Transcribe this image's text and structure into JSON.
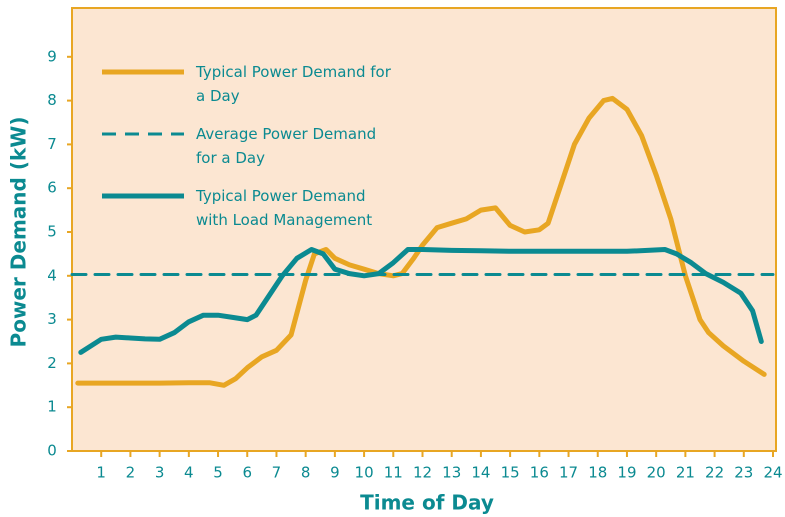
{
  "chart_data": {
    "type": "line",
    "xlabel": "Time of Day",
    "ylabel": "Power Demand (kW)",
    "xlim": [
      0,
      24
    ],
    "xticks": [
      1,
      2,
      3,
      4,
      5,
      6,
      7,
      8,
      9,
      10,
      11,
      12,
      13,
      14,
      15,
      16,
      17,
      18,
      19,
      20,
      21,
      22,
      23,
      24
    ],
    "ylim": [
      0,
      10
    ],
    "yticks": [
      0,
      1,
      2,
      3,
      4,
      5,
      6,
      7,
      8,
      9
    ],
    "background": "#fce6d2",
    "frame_color": "#e8a623",
    "series": [
      {
        "name": "Typical Power Demand for a Day",
        "color": "#e8a623",
        "style": "solid",
        "x": [
          0.2,
          1,
          2,
          3,
          4,
          4.7,
          5.2,
          5.6,
          6,
          6.5,
          7,
          7.5,
          8,
          8.3,
          8.7,
          9,
          9.5,
          10,
          10.5,
          11,
          11.3,
          11.7,
          12,
          12.5,
          13,
          13.5,
          14,
          14.5,
          15,
          15.5,
          16,
          16.3,
          16.7,
          17.2,
          17.7,
          18.2,
          18.5,
          19,
          19.5,
          20,
          20.5,
          21,
          21.5,
          21.8,
          22.3,
          23,
          23.7
        ],
        "values": [
          1.55,
          1.55,
          1.55,
          1.55,
          1.56,
          1.56,
          1.5,
          1.65,
          1.9,
          2.15,
          2.3,
          2.65,
          3.9,
          4.5,
          4.6,
          4.4,
          4.25,
          4.15,
          4.05,
          4.0,
          4.05,
          4.4,
          4.7,
          5.1,
          5.2,
          5.3,
          5.5,
          5.55,
          5.15,
          5.0,
          5.05,
          5.2,
          6.0,
          7.0,
          7.6,
          8.0,
          8.05,
          7.8,
          7.2,
          6.3,
          5.3,
          4.0,
          3.0,
          2.7,
          2.4,
          2.05,
          1.75
        ]
      },
      {
        "name": "Average Power Demand for a Day",
        "color": "#0b8a91",
        "style": "dashed",
        "x": [
          0,
          24
        ],
        "values": [
          4.03,
          4.03
        ]
      },
      {
        "name": "Typical Power Demand with Load Management",
        "color": "#0b8a91",
        "style": "solid",
        "x": [
          0.3,
          1,
          1.5,
          2,
          2.5,
          3,
          3.5,
          4,
          4.5,
          5,
          5.5,
          6,
          6.3,
          6.7,
          7.2,
          7.7,
          8.2,
          8.6,
          9,
          9.5,
          10,
          10.5,
          11,
          11.5,
          12,
          13,
          14,
          15,
          16,
          17,
          18,
          19,
          19.7,
          20.3,
          20.7,
          21.2,
          21.7,
          22.3,
          22.9,
          23.3,
          23.6
        ],
        "values": [
          2.25,
          2.55,
          2.6,
          2.58,
          2.56,
          2.55,
          2.7,
          2.95,
          3.1,
          3.1,
          3.05,
          3.0,
          3.1,
          3.5,
          4.0,
          4.4,
          4.6,
          4.5,
          4.15,
          4.05,
          4.0,
          4.05,
          4.3,
          4.6,
          4.6,
          4.58,
          4.57,
          4.56,
          4.56,
          4.56,
          4.56,
          4.56,
          4.58,
          4.6,
          4.5,
          4.3,
          4.05,
          3.85,
          3.6,
          3.2,
          2.5
        ]
      }
    ]
  }
}
